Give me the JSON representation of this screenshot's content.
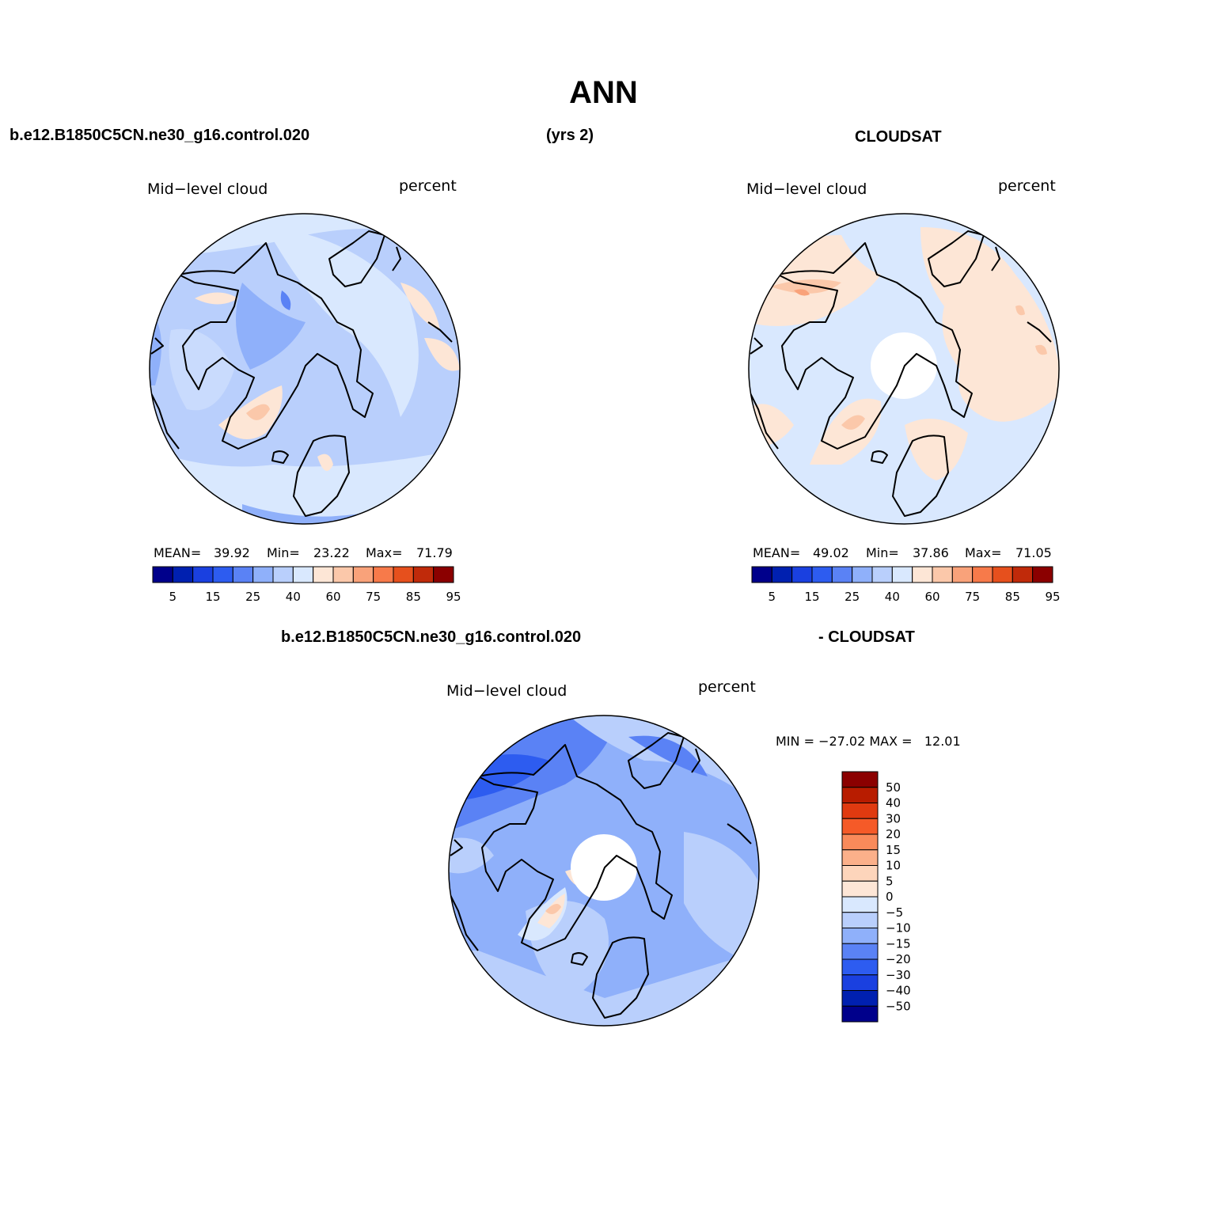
{
  "title": "ANN",
  "header": {
    "case_name": "b.e12.B1850C5CN.ne30_g16.control.020",
    "years": "(yrs 2)",
    "obs_name": "CLOUDSAT",
    "diff_left": "b.e12.B1850C5CN.ne30_g16.control.020",
    "diff_right": "- CLOUDSAT"
  },
  "panels": {
    "model": {
      "variable": "Mid−level cloud",
      "units": "percent",
      "mean_label": "MEAN=",
      "mean": "39.92",
      "min_label": "Min=",
      "min": "23.22",
      "max_label": "Max=",
      "max": "71.79"
    },
    "obs": {
      "variable": "Mid−level cloud",
      "units": "percent",
      "mean_label": "MEAN=",
      "mean": "49.02",
      "min_label": "Min=",
      "min": "37.86",
      "max_label": "Max=",
      "max": "71.05"
    },
    "diff": {
      "variable": "Mid−level cloud",
      "units": "percent",
      "minmax_text": "MIN = −27.02 MAX =   12.01"
    }
  },
  "colorbar_main": {
    "colors": [
      "#00008b",
      "#0020b0",
      "#1a40e0",
      "#2d5cf0",
      "#5a82f5",
      "#8fb0fa",
      "#b9cffc",
      "#d9e8fe",
      "#fde6d6",
      "#fbc8aa",
      "#f9a27a",
      "#f77a4a",
      "#e6501d",
      "#c02a0a",
      "#8b0000"
    ],
    "tick_labels": [
      "5",
      "15",
      "25",
      "40",
      "60",
      "75",
      "85",
      "95"
    ]
  },
  "colorbar_diff": {
    "colors_top_to_bottom": [
      "#8b0000",
      "#b81c00",
      "#e03a10",
      "#f55a28",
      "#f98a5a",
      "#fbb08a",
      "#fdd5bb",
      "#fde6d6",
      "#d9e8fe",
      "#b9cffc",
      "#8fb0fa",
      "#5a82f5",
      "#2d5cf0",
      "#1a40e0",
      "#0020b0",
      "#00008b"
    ],
    "tick_labels": [
      "50",
      "40",
      "30",
      "20",
      "15",
      "10",
      "5",
      "0",
      "−5",
      "−10",
      "−15",
      "−20",
      "−30",
      "−40",
      "−50"
    ]
  }
}
